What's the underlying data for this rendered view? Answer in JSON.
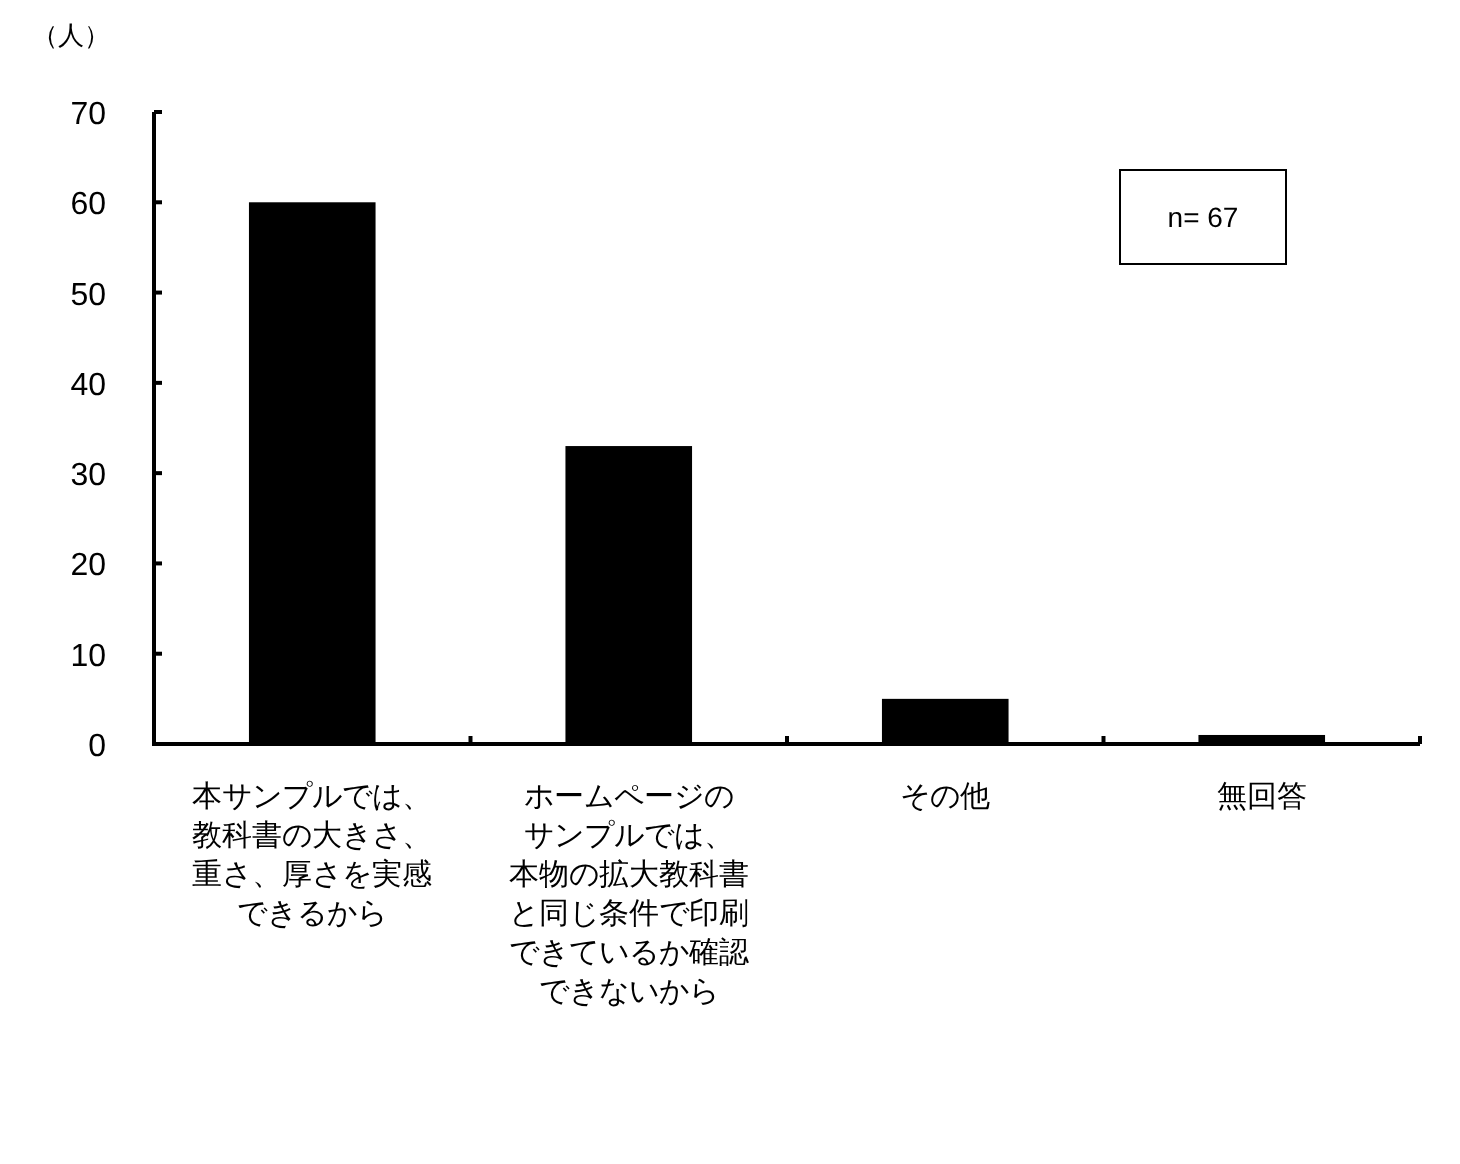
{
  "chart_data": {
    "type": "bar",
    "ylabel": "（人）",
    "categories": [
      "本サンプルでは、教科書の大きさ、重さ、厚さを実感できるから",
      "ホームページのサンプルでは、本物の拡大教科書と同じ条件で印刷できているか確認できないから",
      "その他",
      "無回答"
    ],
    "values": [
      60,
      33,
      5,
      1
    ],
    "color": "#000000",
    "ylim": [
      0,
      70
    ],
    "yticks": [
      0,
      10,
      20,
      30,
      40,
      50,
      60,
      70
    ],
    "annotations": [
      "n= 67"
    ]
  }
}
